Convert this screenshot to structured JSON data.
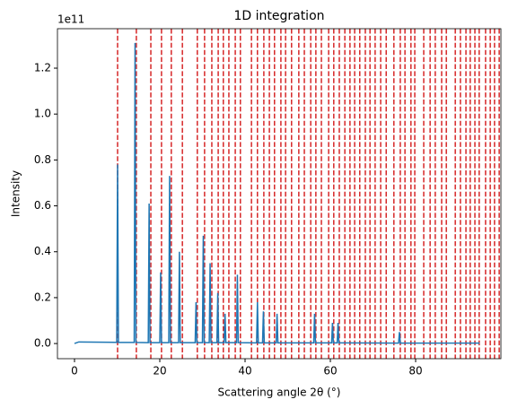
{
  "chart_data": {
    "type": "line",
    "title": "1D integration",
    "x_label": "Scattering angle 2θ (°)",
    "y_label": "Intensity",
    "y_offset_label": "1e11",
    "xlim": [
      -4,
      100
    ],
    "ylim": [
      -0.066,
      1.372
    ],
    "xticks": [
      0,
      20,
      40,
      60,
      80
    ],
    "yticks": [
      {
        "value": 0,
        "label": "0.0"
      },
      0.2,
      0.4,
      0.6,
      0.8,
      {
        "value": 1,
        "label": "1.0"
      },
      1.2
    ],
    "reference_color": "#d62728",
    "reference_lines": [
      10.1,
      14.5,
      17.9,
      20.4,
      22.7,
      25.3,
      28.8,
      30.5,
      32.2,
      33.7,
      34.9,
      36.2,
      37.7,
      38.9,
      41.5,
      42.9,
      44.4,
      45.7,
      46.9,
      48.4,
      49.5,
      50.9,
      52.6,
      53.9,
      55.4,
      56.6,
      57.9,
      59.6,
      60.8,
      62.1,
      63.4,
      64.6,
      65.7,
      66.9,
      68.2,
      69.3,
      70.5,
      71.8,
      73.1,
      74.9,
      76.4,
      77.5,
      78.9,
      79.8,
      81.9,
      83.4,
      84.6,
      86.1,
      87.2,
      89.3,
      90.5,
      91.8,
      92.8,
      93.9,
      94.9,
      96.4,
      97.5,
      98.5,
      99.6
    ],
    "series": [
      {
        "color": "#1f77b4",
        "x": [
          0,
          1,
          9.9,
          10.1,
          10.3,
          14.0,
          14.2,
          14.4,
          17.3,
          17.5,
          17.7,
          20.0,
          20.2,
          20.4,
          22.1,
          22.3,
          22.5,
          24.4,
          24.6,
          24.8,
          28.3,
          28.5,
          28.7,
          30.0,
          30.2,
          30.4,
          31.6,
          31.8,
          32.0,
          33.4,
          33.6,
          33.8,
          35.1,
          35.3,
          35.5,
          38.0,
          38.2,
          38.4,
          42.7,
          42.9,
          43.1,
          44.1,
          44.3,
          44.5,
          47.3,
          47.5,
          47.7,
          56.1,
          56.3,
          56.5,
          60.3,
          60.5,
          60.7,
          61.6,
          61.8,
          62.0,
          76.0,
          76.2,
          76.4,
          95
        ],
        "values": [
          0,
          0.007,
          0.005,
          0.78,
          0.005,
          0.005,
          1.31,
          0.005,
          0.004,
          0.61,
          0.004,
          0.004,
          0.31,
          0.004,
          0.004,
          0.73,
          0.004,
          0.004,
          0.4,
          0.004,
          0.004,
          0.18,
          0.004,
          0.004,
          0.47,
          0.004,
          0.004,
          0.35,
          0.004,
          0.004,
          0.22,
          0.004,
          0.004,
          0.13,
          0.004,
          0.004,
          0.3,
          0.004,
          0.003,
          0.18,
          0.003,
          0.003,
          0.14,
          0.003,
          0.003,
          0.13,
          0.003,
          0.003,
          0.13,
          0.003,
          0.003,
          0.09,
          0.003,
          0.003,
          0.09,
          0.003,
          0.002,
          0.05,
          0.002,
          0.002
        ]
      }
    ]
  }
}
